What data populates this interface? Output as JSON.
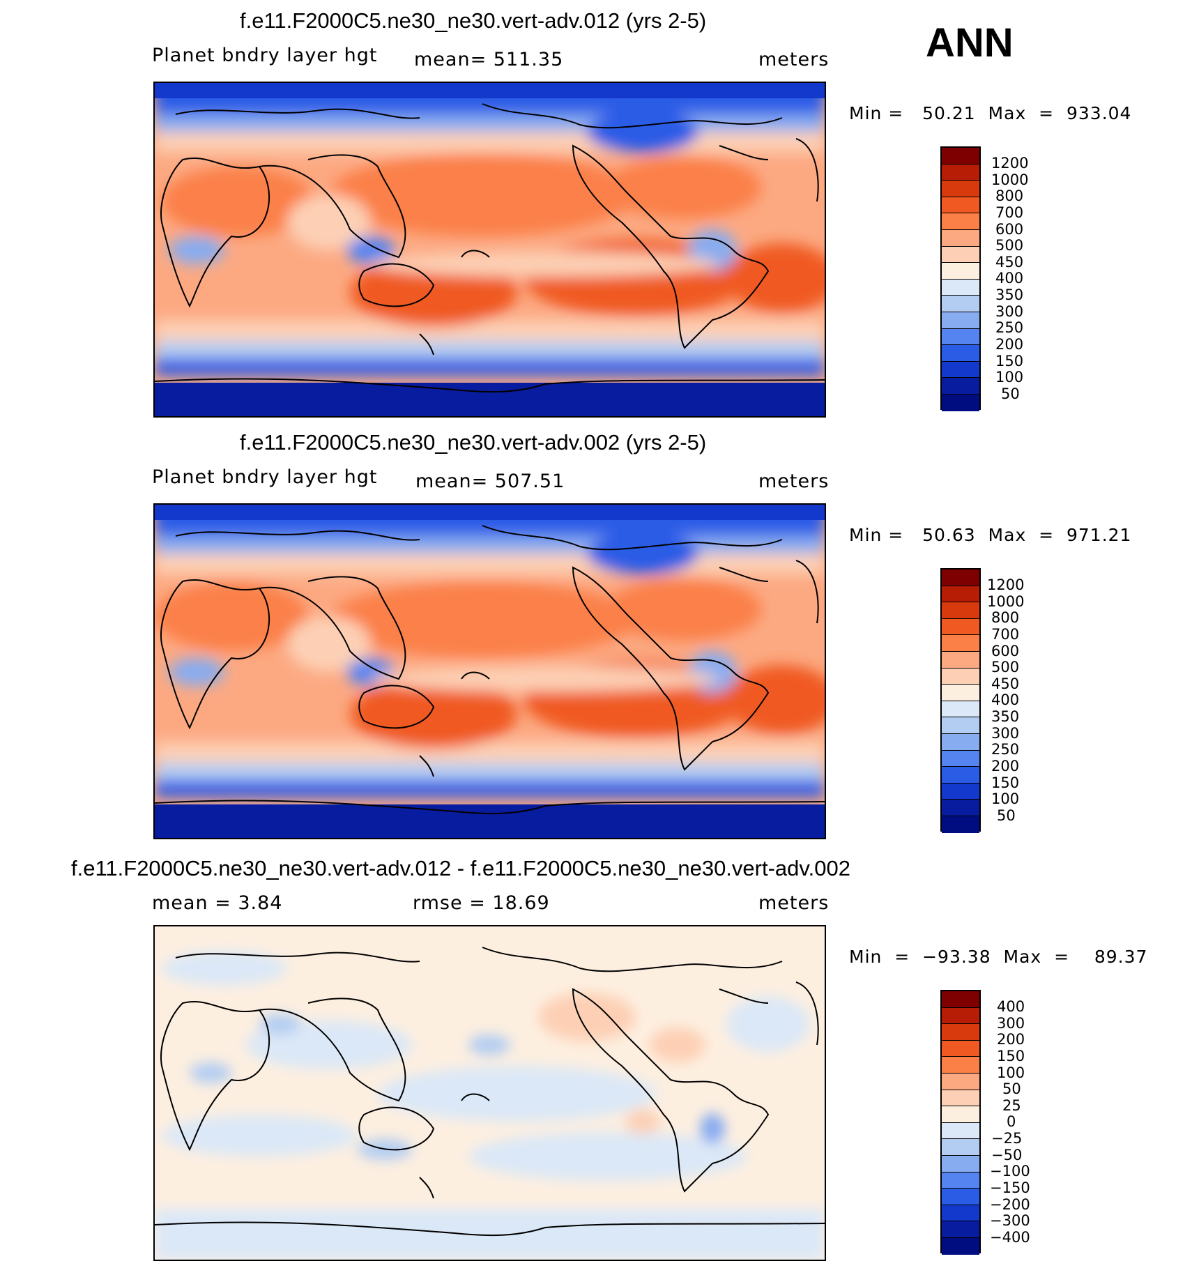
{
  "page_label": "ANN",
  "panels": [
    {
      "title": "f.e11.F2000C5.ne30_ne30.vert-adv.012 (yrs 2-5)",
      "left": "Planet bndry layer hgt",
      "center": "mean=  511.35",
      "units": "meters",
      "minmax": "Min =   50.21  Max  =  933.04",
      "colorbar": [
        "1200",
        "1000",
        "800",
        "700",
        "600",
        "500",
        "450",
        "400",
        "350",
        "300",
        "250",
        "200",
        "150",
        "100",
        "50"
      ]
    },
    {
      "title": "f.e11.F2000C5.ne30_ne30.vert-adv.002 (yrs 2-5)",
      "left": "Planet bndry layer hgt",
      "center": "mean=  507.51",
      "units": "meters",
      "minmax": "Min =   50.63  Max  =  971.21",
      "colorbar": [
        "1200",
        "1000",
        "800",
        "700",
        "600",
        "500",
        "450",
        "400",
        "350",
        "300",
        "250",
        "200",
        "150",
        "100",
        "50"
      ]
    },
    {
      "title": "f.e11.F2000C5.ne30_ne30.vert-adv.012 - f.e11.F2000C5.ne30_ne30.vert-adv.002",
      "left": "mean =      3.84",
      "center": "rmse  =    18.69",
      "units": "meters",
      "minmax": "Min  =  −93.38  Max  =    89.37",
      "colorbar": [
        "400",
        "300",
        "200",
        "150",
        "100",
        "50",
        "25",
        "0",
        "−25",
        "−50",
        "−100",
        "−150",
        "−200",
        "−300",
        "−400"
      ]
    }
  ],
  "colors": {
    "scale": [
      "#7f0000",
      "#b71c05",
      "#d93a0d",
      "#f05a22",
      "#fb8048",
      "#fca982",
      "#fdd0b5",
      "#fdefe0",
      "#dbe8f7",
      "#b3cdf2",
      "#87acf0",
      "#5584f0",
      "#2b5ce6",
      "#1238cc",
      "#071c9e",
      "#000d80"
    ]
  },
  "chart_data": [
    {
      "type": "heatmap",
      "title": "f.e11.F2000C5.ne30_ne30.vert-adv.012 (yrs 2-5)",
      "variable": "Planet bndry layer hgt",
      "units": "meters",
      "mean": 511.35,
      "min": 50.21,
      "max": 933.04,
      "contour_levels": [
        50,
        100,
        150,
        200,
        250,
        300,
        350,
        400,
        450,
        500,
        600,
        700,
        800,
        1000,
        1200
      ]
    },
    {
      "type": "heatmap",
      "title": "f.e11.F2000C5.ne30_ne30.vert-adv.002 (yrs 2-5)",
      "variable": "Planet bndry layer hgt",
      "units": "meters",
      "mean": 507.51,
      "min": 50.63,
      "max": 971.21,
      "contour_levels": [
        50,
        100,
        150,
        200,
        250,
        300,
        350,
        400,
        450,
        500,
        600,
        700,
        800,
        1000,
        1200
      ]
    },
    {
      "type": "heatmap",
      "title": "f.e11.F2000C5.ne30_ne30.vert-adv.012 - f.e11.F2000C5.ne30_ne30.vert-adv.002",
      "units": "meters",
      "mean": 3.84,
      "rmse": 18.69,
      "min": -93.38,
      "max": 89.37,
      "contour_levels": [
        -400,
        -300,
        -200,
        -150,
        -100,
        -50,
        -25,
        0,
        25,
        50,
        100,
        150,
        200,
        300,
        400
      ]
    }
  ]
}
